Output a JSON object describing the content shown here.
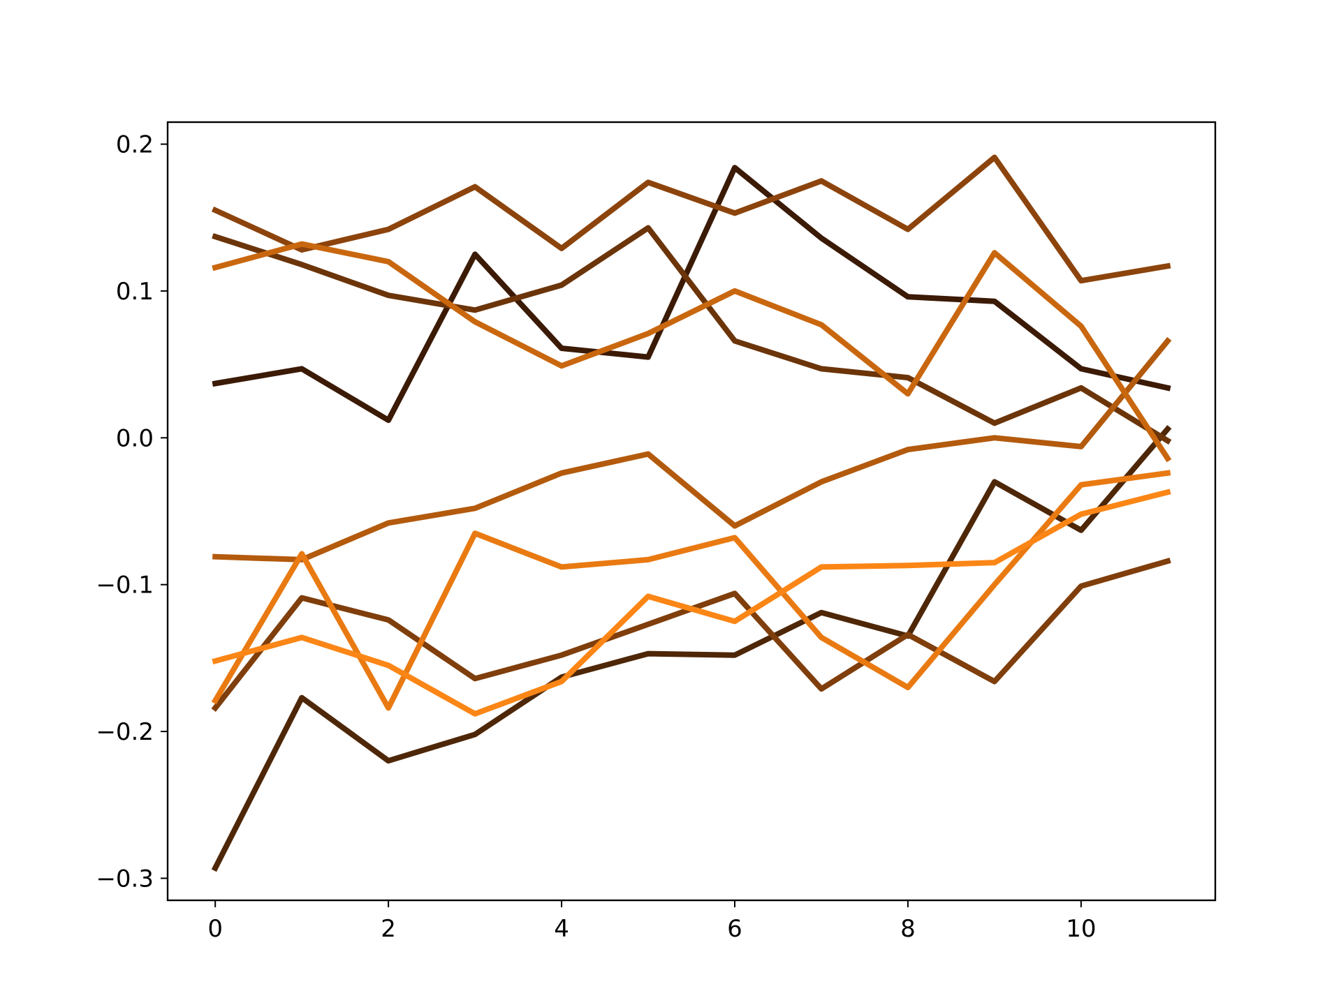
{
  "chart_data": {
    "type": "line",
    "title": "",
    "xlabel": "",
    "ylabel": "",
    "xlim": [
      -0.55,
      11.55
    ],
    "ylim": [
      -0.315,
      0.215
    ],
    "grid": false,
    "legend": "none",
    "x": [
      0,
      1,
      2,
      3,
      4,
      5,
      6,
      7,
      8,
      9,
      10,
      11
    ],
    "x_ticks": [
      0,
      2,
      4,
      6,
      8,
      10
    ],
    "x_tick_labels": [
      "0",
      "2",
      "4",
      "6",
      "8",
      "10"
    ],
    "y_ticks": [
      0.2,
      0.1,
      0.0,
      -0.1,
      -0.2,
      -0.3
    ],
    "y_tick_labels": [
      "0.2",
      "0.1",
      "0.0",
      "−0.1",
      "−0.2",
      "−0.3"
    ],
    "series": [
      {
        "color": "#3b1a06",
        "values": [
          0.037,
          0.047,
          0.012,
          0.125,
          0.061,
          0.055,
          0.184,
          0.136,
          0.096,
          0.093,
          0.047,
          0.034
        ]
      },
      {
        "color": "#4e2708",
        "values": [
          -0.293,
          -0.177,
          -0.22,
          -0.202,
          -0.163,
          -0.147,
          -0.148,
          -0.119,
          -0.135,
          -0.03,
          -0.063,
          0.006
        ]
      },
      {
        "color": "#6b3409",
        "values": [
          0.137,
          0.118,
          0.097,
          0.087,
          0.104,
          0.143,
          0.066,
          0.047,
          0.041,
          0.01,
          0.034,
          -0.002
        ]
      },
      {
        "color": "#7f3e0b",
        "values": [
          -0.184,
          -0.109,
          -0.124,
          -0.164,
          -0.148,
          -0.127,
          -0.106,
          -0.171,
          -0.134,
          -0.166,
          -0.101,
          -0.084
        ]
      },
      {
        "color": "#8c440c",
        "values": [
          0.155,
          0.128,
          0.142,
          0.171,
          0.129,
          0.174,
          0.153,
          0.175,
          0.142,
          0.191,
          0.107,
          0.117
        ]
      },
      {
        "color": "#b35a0d",
        "values": [
          -0.081,
          -0.083,
          -0.058,
          -0.048,
          -0.024,
          -0.011,
          -0.06,
          -0.03,
          -0.008,
          0.0,
          -0.006,
          0.066
        ]
      },
      {
        "color": "#c9670f",
        "values": [
          0.116,
          0.132,
          0.12,
          0.079,
          0.049,
          0.071,
          0.1,
          0.077,
          0.03,
          0.126,
          0.076,
          -0.014
        ]
      },
      {
        "color": "#e97a12",
        "values": [
          -0.179,
          -0.079,
          -0.184,
          -0.065,
          -0.088,
          -0.083,
          -0.068,
          -0.136,
          -0.17,
          -0.1,
          -0.032,
          -0.024
        ]
      },
      {
        "color": "#fb8616",
        "values": [
          -0.152,
          -0.136,
          -0.155,
          -0.188,
          -0.166,
          -0.108,
          -0.125,
          -0.088,
          -0.087,
          -0.085,
          -0.052,
          -0.037
        ]
      }
    ]
  }
}
